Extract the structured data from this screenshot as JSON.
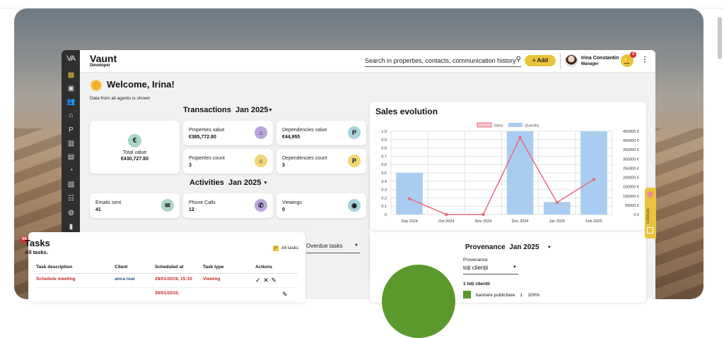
{
  "app": {
    "brand": "Vaunt",
    "brand_sub": "Developer",
    "logo": "VA"
  },
  "sidebar": {
    "items": [
      {
        "icon": "dashboard-icon",
        "glyph": "▦"
      },
      {
        "icon": "contact-card-icon",
        "glyph": "▣"
      },
      {
        "icon": "people-icon",
        "glyph": "👥"
      },
      {
        "icon": "home-icon",
        "glyph": "⌂"
      },
      {
        "icon": "parking-icon",
        "glyph": "P"
      },
      {
        "icon": "buildings-icon",
        "glyph": "▥"
      },
      {
        "icon": "clipboard-icon",
        "glyph": "▤"
      },
      {
        "icon": "pie-chart-icon",
        "glyph": "◔"
      },
      {
        "icon": "documents-icon",
        "glyph": "▧"
      },
      {
        "icon": "user-group-icon",
        "glyph": "☷"
      },
      {
        "icon": "globe-icon",
        "glyph": "◍"
      },
      {
        "icon": "file-icon",
        "glyph": "▮"
      },
      {
        "icon": "rss-icon",
        "glyph": "≋"
      },
      {
        "icon": "euro-icon",
        "glyph": "€"
      },
      {
        "icon": "id-card-icon",
        "glyph": "▭"
      }
    ]
  },
  "header": {
    "search_placeholder": "Search in properties, contacts, communication history",
    "add_label": "+ Add",
    "user_name": "Irina Constantin",
    "user_role": "Manager",
    "notifications_count": "3"
  },
  "welcome": {
    "title": "Welcome, Irina!",
    "subtitle": "Data from all agents is shown"
  },
  "transactions": {
    "title": "Transactions",
    "period": "Jan 2025",
    "total_label": "Total value",
    "total_value": "€430,727.80",
    "cards": [
      {
        "label": "Properties value",
        "value": "€385,772.80",
        "icon": "home-icon",
        "glyph": "⌂",
        "color": "#b9a7dc"
      },
      {
        "label": "Dependencies value",
        "value": "€44,955",
        "icon": "parking-icon",
        "glyph": "P",
        "color": "#a9d2dc"
      },
      {
        "label": "Properties count",
        "value": "3",
        "icon": "home-icon",
        "glyph": "⌂",
        "color": "#f2d577"
      },
      {
        "label": "Dependencies count",
        "value": "3",
        "icon": "parking-icon",
        "glyph": "P",
        "color": "#f2d577"
      }
    ]
  },
  "activities": {
    "title": "Activities",
    "period": "Jan 2025",
    "cards": [
      {
        "label": "Emails sent",
        "value": "41",
        "icon": "mail-icon",
        "glyph": "✉",
        "color": "#a8d5c8"
      },
      {
        "label": "Phone Calls",
        "value": "12",
        "icon": "phone-icon",
        "glyph": "✆",
        "color": "#b9a7dc"
      },
      {
        "label": "Viewings",
        "value": "0",
        "icon": "eye-icon",
        "glyph": "◉",
        "color": "#a9d2dc"
      }
    ]
  },
  "chart_data": {
    "type": "bar",
    "title": "Sales evolution",
    "categories": [
      "Sep 2024",
      "Oct 2024",
      "Nov 2024",
      "Dec 2024",
      "Jan 2025",
      "Feb 2025"
    ],
    "series": [
      {
        "name": "Quantity",
        "type": "bar",
        "axis": "left",
        "color": "#a9cdf0",
        "values": [
          0.5,
          0,
          0,
          1.0,
          0.15,
          1.0
        ]
      },
      {
        "name": "Value",
        "type": "line",
        "axis": "right",
        "color": "#e96a7e",
        "values": [
          85000,
          0,
          0,
          415000,
          65000,
          190000
        ]
      }
    ],
    "ylim": [
      0,
      1.0
    ],
    "yticks": [
      "0",
      "0.1",
      "0.2",
      "0.3",
      "0.4",
      "0.5",
      "0.6",
      "0.7",
      "0.8",
      "0.9",
      "1.0"
    ],
    "y2lim": [
      0,
      450000
    ],
    "y2ticks": [
      "0 €",
      "50000 €",
      "100000 €",
      "150000 €",
      "200000 €",
      "250000 €",
      "300000 €",
      "350000 €",
      "400000 €",
      "450000 €"
    ],
    "legend_placement": "top-center",
    "grid": true
  },
  "tasks": {
    "badge": "68",
    "title": "Tasks",
    "subtitle": "All tasks.",
    "all_tasks_label": "All tasks",
    "filter": "Overdue tasks",
    "columns": [
      "Task description",
      "Client",
      "Scheduled at",
      "Task type",
      "Actions"
    ],
    "rows": [
      {
        "description": "Schedule meeting",
        "client": "anca real",
        "scheduled": "29/01/2019, 15:10",
        "type": "Viewing"
      },
      {
        "description": "",
        "client": "",
        "scheduled": "30/01/2019,",
        "type": ""
      }
    ]
  },
  "provenance": {
    "title": "Provenance",
    "period": "Jan 2025",
    "field_label": "Provenance",
    "select_value": "toți clienții",
    "group_title": "1 toți clienții",
    "legend_item": "bannere publicitare",
    "legend_count": "1",
    "legend_percent": "100%",
    "color": "#5a9a2c"
  },
  "tutorial": {
    "label": "Tutorials"
  }
}
